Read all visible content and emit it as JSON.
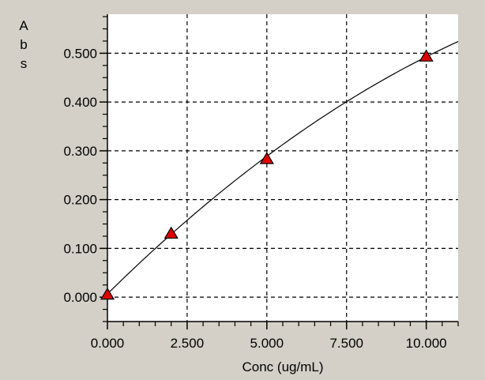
{
  "chart_data": {
    "type": "scatter",
    "title": "",
    "xlabel": "Conc (ug/mL)",
    "ylabel": "Abs",
    "ylabel_chars": [
      "A",
      "b",
      "s"
    ],
    "xlim": [
      0,
      11
    ],
    "ylim": [
      -0.05,
      0.58
    ],
    "x_ticks": [
      0,
      2.5,
      5,
      7.5,
      10
    ],
    "x_tick_labels": [
      "0.000",
      "2.500",
      "5.000",
      "7.500",
      "10.000"
    ],
    "y_ticks": [
      0,
      0.1,
      0.2,
      0.3,
      0.4,
      0.5
    ],
    "y_tick_labels": [
      "0.000",
      "0.100",
      "0.200",
      "0.300",
      "0.400",
      "0.500"
    ],
    "x_minor_step": 0.5,
    "y_minor_step": 0.025,
    "grid": true,
    "grid_style": "dashed",
    "points": [
      {
        "x": 0,
        "y": 0.005
      },
      {
        "x": 2,
        "y": 0.13
      },
      {
        "x": 5,
        "y": 0.283
      },
      {
        "x": 10,
        "y": 0.493
      }
    ],
    "fit_curve": {
      "type": "quadratic",
      "coefficients": [
        0.0067,
        0.0643,
        -0.00157
      ],
      "x_range": [
        0,
        11
      ]
    },
    "marker": {
      "shape": "triangle",
      "fill": "#e00000",
      "stroke": "#000000"
    },
    "colors": {
      "panel_background": "#d4d0c8",
      "plot_background": "#ffffff",
      "grid": "#000000",
      "curve": "#000000"
    }
  }
}
